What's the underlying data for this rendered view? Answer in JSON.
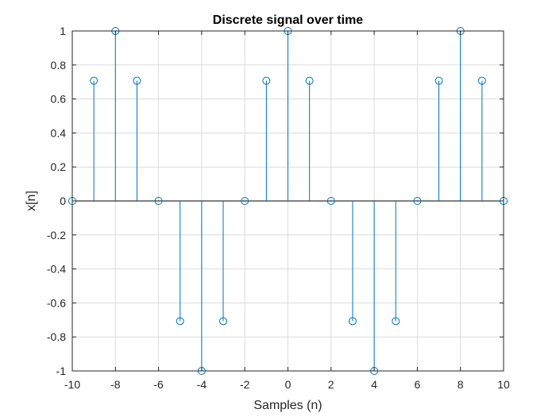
{
  "chart_data": {
    "type": "stem",
    "title": "Discrete signal over time",
    "xlabel": "Samples (n)",
    "ylabel": "x[n]",
    "xlim": [
      -10,
      10
    ],
    "ylim": [
      -1,
      1
    ],
    "grid": true,
    "x_ticks": [
      -10,
      -8,
      -6,
      -4,
      -2,
      0,
      2,
      4,
      6,
      8,
      10
    ],
    "y_ticks": [
      -1,
      -0.8,
      -0.6,
      -0.4,
      -0.2,
      0,
      0.2,
      0.4,
      0.6,
      0.8,
      1
    ],
    "series": [
      {
        "color": "#0072bd",
        "marker": "circle",
        "x": [
          -10,
          -9,
          -8,
          -7,
          -6,
          -5,
          -4,
          -3,
          -2,
          -1,
          0,
          1,
          2,
          3,
          4,
          5,
          6,
          7,
          8,
          9,
          10
        ],
        "y": [
          0,
          0.7071,
          1,
          0.7071,
          0,
          -0.7071,
          -1,
          -0.7071,
          0,
          0.7071,
          1,
          0.7071,
          0,
          -0.7071,
          -1,
          -0.7071,
          0,
          0.7071,
          1,
          0.7071,
          0
        ]
      }
    ]
  }
}
